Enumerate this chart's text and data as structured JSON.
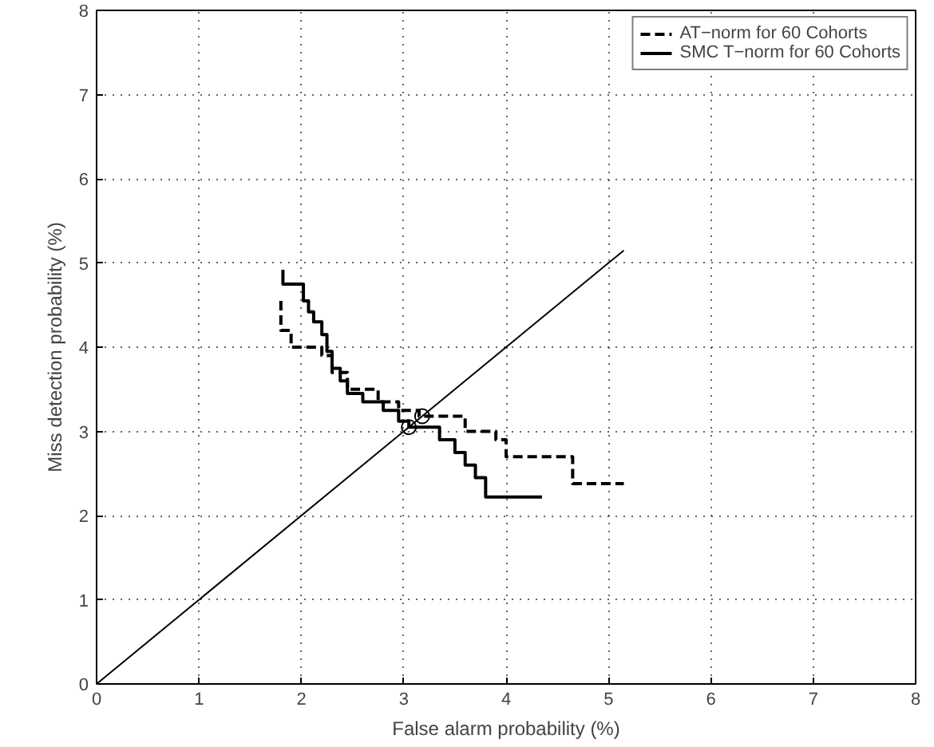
{
  "chart_data": {
    "type": "line",
    "xlabel": "False alarm probability (%)",
    "ylabel": "Miss detection probability (%)",
    "xlim": [
      0,
      8
    ],
    "ylim": [
      0,
      8
    ],
    "xticks": [
      0,
      1,
      2,
      3,
      4,
      5,
      6,
      7,
      8
    ],
    "yticks": [
      0,
      1,
      2,
      3,
      4,
      5,
      6,
      7,
      8
    ],
    "grid": true,
    "legend": "top right",
    "series": [
      {
        "name": "AT−norm for 60 Cohorts",
        "color": "#000000",
        "line_style": "dashed",
        "x": [
          1.8,
          1.8,
          1.9,
          1.9,
          2.2,
          2.2,
          2.3,
          2.3,
          2.45,
          2.45,
          2.75,
          2.75,
          2.95,
          2.95,
          3.15,
          3.15,
          3.6,
          3.6,
          3.9,
          3.9,
          4.0,
          4.0,
          4.65,
          4.65,
          5.15
        ],
        "values": [
          4.55,
          4.2,
          4.2,
          4.0,
          4.0,
          3.9,
          3.9,
          3.7,
          3.7,
          3.5,
          3.5,
          3.35,
          3.35,
          3.25,
          3.25,
          3.18,
          3.18,
          3.0,
          3.0,
          2.9,
          2.9,
          2.7,
          2.7,
          2.38,
          2.38
        ]
      },
      {
        "name": "SMC T−norm for 60 Cohorts",
        "color": "#000000",
        "line_style": "solid",
        "x": [
          1.82,
          1.82,
          2.02,
          2.02,
          2.07,
          2.07,
          2.12,
          2.12,
          2.2,
          2.2,
          2.25,
          2.25,
          2.3,
          2.3,
          2.38,
          2.38,
          2.45,
          2.45,
          2.6,
          2.6,
          2.8,
          2.8,
          2.95,
          2.95,
          3.05,
          3.05,
          3.35,
          3.35,
          3.5,
          3.5,
          3.6,
          3.6,
          3.7,
          3.7,
          3.8,
          3.8,
          4.35
        ],
        "values": [
          4.92,
          4.75,
          4.75,
          4.55,
          4.55,
          4.42,
          4.42,
          4.3,
          4.3,
          4.15,
          4.15,
          3.95,
          3.95,
          3.75,
          3.75,
          3.6,
          3.6,
          3.45,
          3.45,
          3.35,
          3.35,
          3.25,
          3.25,
          3.12,
          3.12,
          3.05,
          3.05,
          2.9,
          2.9,
          2.75,
          2.75,
          2.6,
          2.6,
          2.45,
          2.45,
          2.22,
          2.22
        ]
      },
      {
        "color": "#000000",
        "line_style": "solid",
        "x": [
          0,
          5.15
        ],
        "values": [
          0,
          5.15
        ]
      },
      {
        "type": "scatter",
        "marker": "circle",
        "color": "#000000",
        "x": [
          3.05,
          3.18
        ],
        "values": [
          3.05,
          3.18
        ]
      }
    ]
  }
}
